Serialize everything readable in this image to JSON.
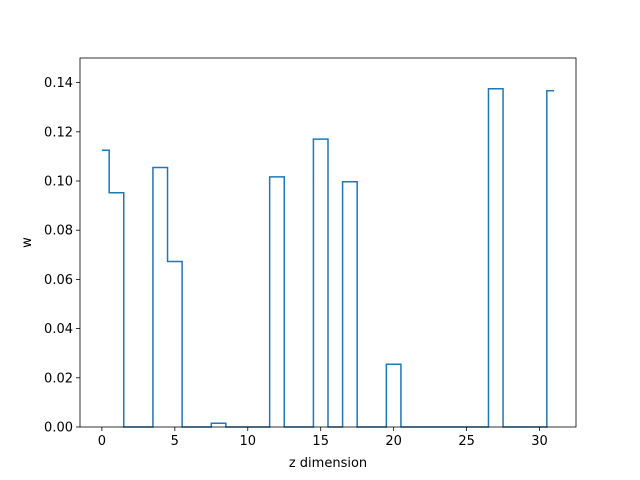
{
  "chart_data": {
    "type": "line",
    "style": "step-mid",
    "title": "",
    "xlabel": "z dimension",
    "ylabel": "w",
    "xlim": [
      -1.5,
      32.5
    ],
    "ylim": [
      0,
      0.15
    ],
    "xticks": [
      0,
      5,
      10,
      15,
      20,
      25,
      30
    ],
    "xtick_labels": [
      "0",
      "5",
      "10",
      "15",
      "20",
      "25",
      "30"
    ],
    "yticks": [
      0,
      0.02,
      0.04,
      0.06,
      0.08,
      0.1,
      0.12,
      0.14
    ],
    "ytick_labels": [
      "0.00",
      "0.02",
      "0.04",
      "0.06",
      "0.08",
      "0.10",
      "0.12",
      "0.14"
    ],
    "grid": false,
    "series": [
      {
        "color": "#1f77b4",
        "x": [
          0,
          1,
          2,
          3,
          4,
          5,
          6,
          7,
          8,
          9,
          10,
          11,
          12,
          13,
          14,
          15,
          16,
          17,
          18,
          19,
          20,
          21,
          22,
          23,
          24,
          25,
          26,
          27,
          28,
          29,
          30,
          31
        ],
        "y": [
          0.1125,
          0.0952,
          0.0,
          0.0,
          0.1055,
          0.0673,
          0.0,
          0.0,
          0.0015,
          0.0,
          0.0,
          0.0,
          0.1017,
          0.0,
          0.0,
          0.117,
          0.0,
          0.0997,
          0.0,
          0.0,
          0.0255,
          0.0,
          0.0,
          0.0,
          0.0,
          0.0,
          0.0,
          0.1375,
          0.0,
          0.0,
          0.0,
          0.1367
        ]
      }
    ]
  }
}
